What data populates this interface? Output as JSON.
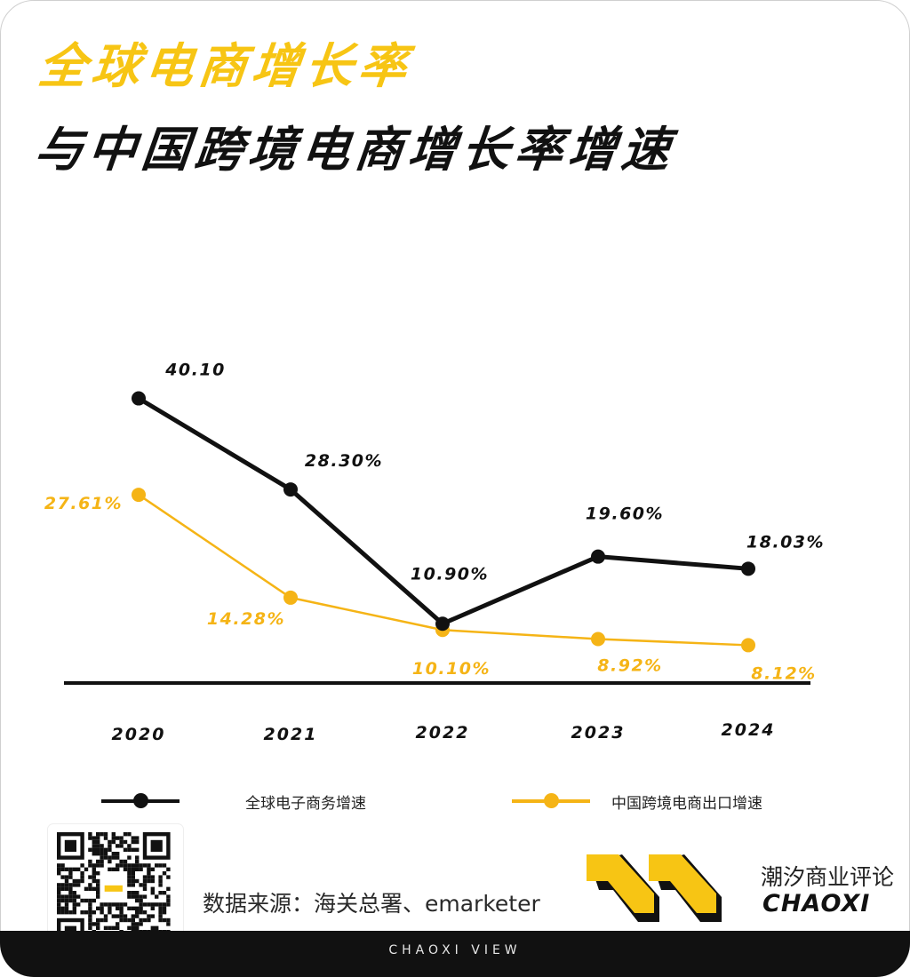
{
  "header": {
    "title_line1": "全球电商增长率",
    "title_line2": "与中国跨境电商增长率增速"
  },
  "chart_data": {
    "type": "line",
    "categories": [
      "2020",
      "2021",
      "2022",
      "2023",
      "2024"
    ],
    "series": [
      {
        "name": "全球电子商务增速",
        "color": "#111111",
        "values": [
          40.1,
          28.3,
          10.9,
          19.6,
          18.03
        ],
        "labels": [
          "40.10",
          "28.30%",
          "10.90%",
          "19.60%",
          "18.03%"
        ]
      },
      {
        "name": "中国跨境电商出口增速",
        "color": "#f5b416",
        "values": [
          27.61,
          14.28,
          10.1,
          8.92,
          8.12
        ],
        "labels": [
          "27.61%",
          "14.28%",
          "10.10%",
          "8.92%",
          "8.12%"
        ]
      }
    ],
    "xlabel": "",
    "ylabel": "",
    "grid": false,
    "legend": "bottom"
  },
  "legend": {
    "global_label": "全球电子商务增速",
    "china_label": "中国跨境电商出口增速"
  },
  "source": "数据来源：海关总署、emarketer",
  "brand": {
    "name_cn": "潮汐商业评论",
    "name_en": "CHAOXI"
  },
  "footer": {
    "text": "CHAOXI VIEW"
  },
  "colors": {
    "accent_yellow": "#f7c514",
    "dark": "#111111"
  }
}
